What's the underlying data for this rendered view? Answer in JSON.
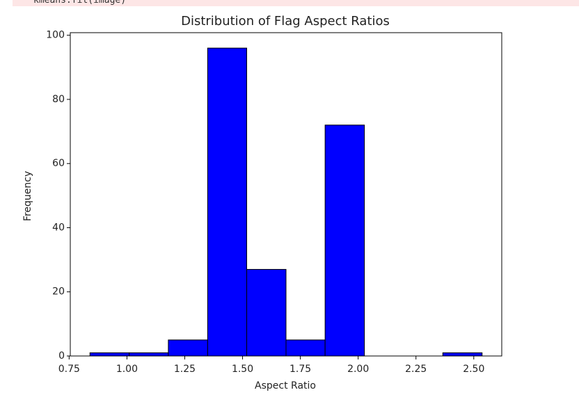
{
  "code_line": "kmeans.fit(image)",
  "chart_data": {
    "type": "histogram",
    "title": "Distribution of Flag Aspect Ratios",
    "x_label": "Aspect Ratio",
    "y_label": "Frequency",
    "bins": [
      0.84,
      1.01,
      1.179,
      1.349,
      1.518,
      1.688,
      1.857,
      2.027,
      2.197,
      2.366,
      2.536
    ],
    "values": [
      1,
      1,
      5,
      96,
      27,
      5,
      72,
      0,
      0,
      1
    ],
    "color": "#0000ff",
    "edgecolor": "#000000",
    "xlim": [
      0.755,
      2.621
    ],
    "ylim": [
      0,
      100.8
    ],
    "xticks": [
      0.75,
      {
        "value": 1,
        "label": "1.00"
      },
      1.25,
      {
        "value": 1.5,
        "label": "1.50"
      },
      1.75,
      {
        "value": 2,
        "label": "2.00"
      },
      2.25,
      {
        "value": 2.5,
        "label": "2.50"
      }
    ],
    "yticks": [
      0,
      20,
      40,
      60,
      80,
      100
    ],
    "grid": false
  }
}
